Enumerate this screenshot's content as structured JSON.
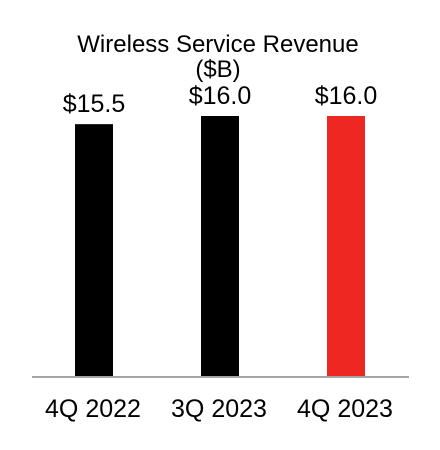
{
  "chart_data": {
    "type": "bar",
    "title": "Wireless Service Revenue",
    "subtitle": "($B)",
    "categories": [
      "4Q 2022",
      "3Q 2023",
      "4Q 2023"
    ],
    "values": [
      15.5,
      16.0,
      16.0
    ],
    "value_labels": [
      "$15.5",
      "$16.0",
      "$16.0"
    ],
    "colors": [
      "#000000",
      "#000000",
      "#ee2722"
    ],
    "axis_color": "#a6a6a6",
    "ylim": [
      0,
      16.0
    ],
    "grid": false,
    "legend": "none"
  }
}
